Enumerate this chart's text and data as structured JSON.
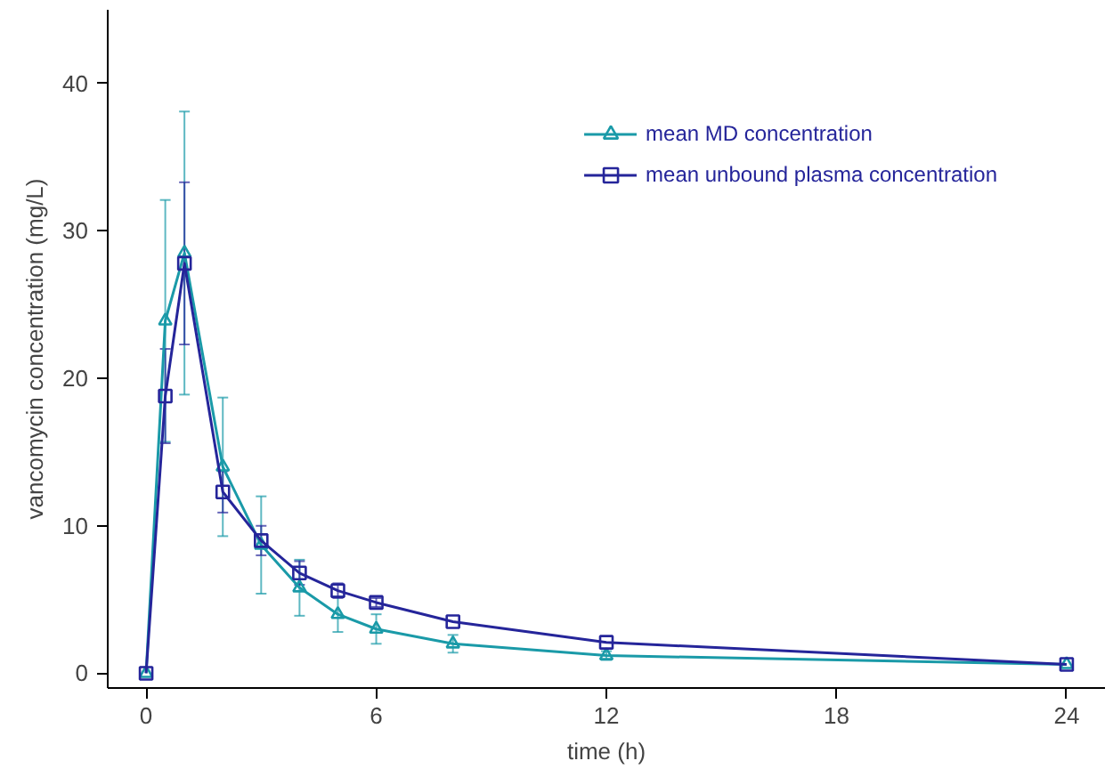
{
  "chart_data": {
    "type": "line",
    "xlabel": "time (h)",
    "ylabel": "vancomycin concentration (mg/L)",
    "x": [
      0,
      0.5,
      1,
      2,
      3,
      4,
      5,
      6,
      8,
      12,
      24
    ],
    "xlim": [
      -1,
      25
    ],
    "xticks": [
      0,
      6,
      12,
      18,
      24
    ],
    "ylim": [
      -1,
      45
    ],
    "yticks": [
      0,
      10,
      20,
      30,
      40
    ],
    "grid": false,
    "legend": "top right",
    "series": [
      {
        "name": "mean MD concentration",
        "color": "#1a9aa8",
        "marker": "triangle",
        "values": [
          0,
          23.9,
          28.5,
          14,
          8.7,
          5.8,
          4.0,
          3.0,
          2.0,
          1.2,
          0.6
        ],
        "errors": [
          null,
          8.2,
          9.6,
          4.7,
          3.3,
          1.9,
          1.2,
          1.0,
          0.6,
          0.3,
          null
        ]
      },
      {
        "name": "mean unbound plasma concentration",
        "color": "#25259a",
        "marker": "square",
        "values": [
          0,
          18.8,
          27.8,
          12.3,
          9.0,
          6.8,
          5.6,
          4.8,
          3.5,
          2.1,
          0.6
        ],
        "errors": [
          null,
          3.2,
          5.5,
          1.4,
          1.0,
          0.8,
          0.5,
          0.3,
          null,
          null,
          null
        ]
      }
    ]
  }
}
